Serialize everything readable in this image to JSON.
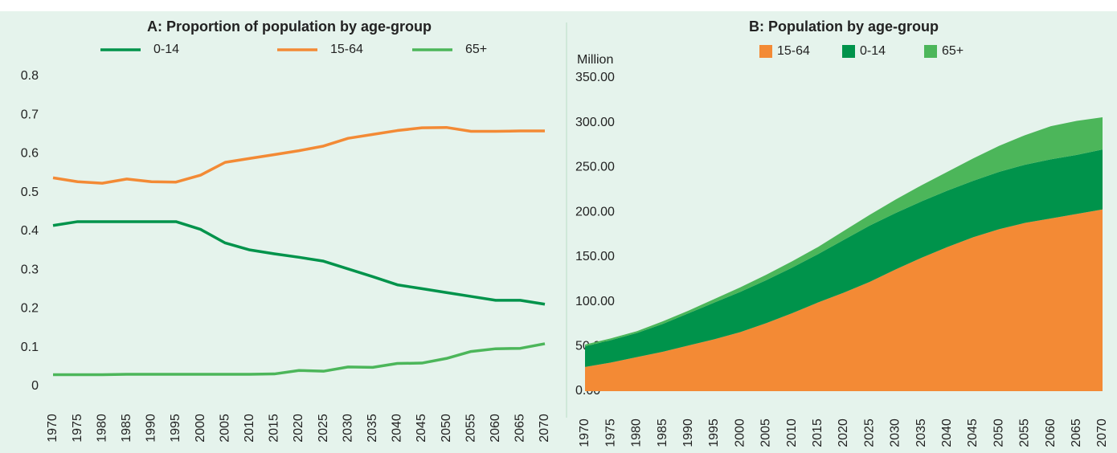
{
  "chart_data": [
    {
      "type": "line",
      "title": "A: Proportion of population by age-group",
      "x": [
        1970,
        1975,
        1980,
        1985,
        1990,
        1995,
        2000,
        2005,
        2010,
        2015,
        2020,
        2025,
        2030,
        2035,
        2040,
        2045,
        2050,
        2055,
        2060,
        2065,
        2070
      ],
      "xlim": [
        1970,
        2070
      ],
      "xticks": [
        1970,
        1975,
        1980,
        1985,
        1990,
        1995,
        2000,
        2005,
        2010,
        2015,
        2020,
        2025,
        2030,
        2035,
        2040,
        2045,
        2050,
        2055,
        2060,
        2065,
        2070
      ],
      "ylim": [
        0,
        0.8
      ],
      "yticks": [
        0,
        0.1,
        0.2,
        0.3,
        0.4,
        0.5,
        0.6,
        0.7,
        0.8
      ],
      "grid": false,
      "series": [
        {
          "name": "0-14",
          "color": "#00934b",
          "values": [
            0.415,
            0.425,
            0.425,
            0.425,
            0.425,
            0.425,
            0.405,
            0.37,
            0.352,
            0.342,
            0.333,
            0.323,
            0.303,
            0.283,
            0.262,
            0.252,
            0.242,
            0.232,
            0.222,
            0.222,
            0.212
          ]
        },
        {
          "name": "15-64",
          "color": "#f38a35",
          "values": [
            0.538,
            0.528,
            0.524,
            0.535,
            0.528,
            0.527,
            0.545,
            0.578,
            0.588,
            0.598,
            0.608,
            0.62,
            0.64,
            0.65,
            0.66,
            0.667,
            0.668,
            0.658,
            0.658,
            0.659,
            0.659
          ]
        },
        {
          "name": "65+",
          "color": "#4cb65a",
          "values": [
            0.03,
            0.03,
            0.03,
            0.031,
            0.031,
            0.031,
            0.031,
            0.031,
            0.031,
            0.032,
            0.041,
            0.039,
            0.05,
            0.049,
            0.059,
            0.06,
            0.072,
            0.09,
            0.097,
            0.098,
            0.11
          ]
        }
      ]
    },
    {
      "type": "area",
      "title": "B: Population by age-group",
      "y_label": "Million",
      "stacked": true,
      "x": [
        1970,
        1975,
        1980,
        1985,
        1990,
        1995,
        2000,
        2005,
        2010,
        2015,
        2020,
        2025,
        2030,
        2035,
        2040,
        2045,
        2050,
        2055,
        2060,
        2065,
        2070
      ],
      "xlim": [
        1970,
        2070
      ],
      "xticks": [
        1970,
        1975,
        1980,
        1985,
        1990,
        1995,
        2000,
        2005,
        2010,
        2015,
        2020,
        2025,
        2030,
        2035,
        2040,
        2045,
        2050,
        2055,
        2060,
        2065,
        2070
      ],
      "ylim": [
        0,
        350
      ],
      "yticks": [
        {
          "value": 0,
          "label": "0.00"
        },
        {
          "value": 50,
          "label": "50.00"
        },
        {
          "value": 100,
          "label": "100.00"
        },
        {
          "value": 150,
          "label": "150.00"
        },
        {
          "value": 200,
          "label": "200.00"
        },
        {
          "value": 250,
          "label": "250.00"
        },
        {
          "value": 300,
          "label": "300.00"
        },
        {
          "value": 350,
          "label": "350.00"
        }
      ],
      "grid": false,
      "series": [
        {
          "name": "15-64",
          "color": "#f38a35",
          "values": [
            27,
            32,
            38,
            44,
            51,
            58,
            66,
            76,
            87,
            99,
            110,
            122,
            136,
            149,
            161,
            172,
            181,
            188,
            193,
            198,
            203
          ]
        },
        {
          "name": "0-14",
          "color": "#00934b",
          "values": [
            23,
            25,
            27,
            31,
            36,
            41,
            45,
            48,
            51,
            54,
            59,
            63,
            63,
            63,
            63,
            63,
            64,
            65,
            66,
            66,
            67
          ]
        },
        {
          "name": "65+",
          "color": "#4cb65a",
          "values": [
            2,
            2,
            2,
            3,
            3,
            4,
            5,
            6,
            7,
            8,
            10,
            12,
            15,
            18,
            21,
            25,
            29,
            33,
            37,
            38,
            36
          ]
        }
      ]
    }
  ]
}
